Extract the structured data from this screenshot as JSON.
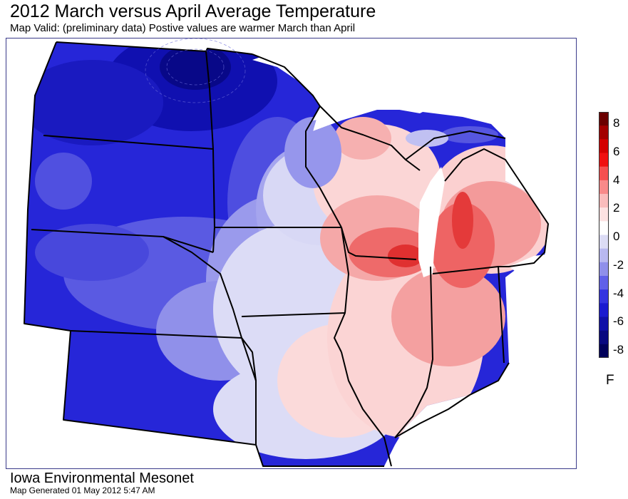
{
  "title": "2012 March versus April Average Temperature",
  "subtitle": "Map Valid: (preliminary data) Postive values are warmer March than April",
  "footer": {
    "organization": "Iowa Environmental Mesonet",
    "generated": "Map Generated 01 May 2012 5:47 AM"
  },
  "legend": {
    "units": "F",
    "ticks": [
      "8",
      "6",
      "4",
      "2",
      "0",
      "-2",
      "-4",
      "-6",
      "-8"
    ],
    "colors": [
      "#6b0000",
      "#a30000",
      "#d40000",
      "#f01010",
      "#f55050",
      "#f88a8a",
      "#fabcbc",
      "#fde2e2",
      "#ffffff",
      "#dcdcf5",
      "#b8b8f0",
      "#8f8fea",
      "#6060e8",
      "#3434e0",
      "#1a1ad0",
      "#1010a8",
      "#080880",
      "#00005a"
    ]
  },
  "palette": {
    "deep_blue": "#1010a8",
    "blue": "#2a2ae0",
    "mid_blue": "#5050e0",
    "light_blue": "#9090ea",
    "pale_blue": "#d8d8f5",
    "pale_red": "#fbd8d8",
    "light_red": "#f5a0a0",
    "red": "#ee6060",
    "dark_red": "#d81818",
    "water": "#ffffff",
    "border": "#000000"
  }
}
